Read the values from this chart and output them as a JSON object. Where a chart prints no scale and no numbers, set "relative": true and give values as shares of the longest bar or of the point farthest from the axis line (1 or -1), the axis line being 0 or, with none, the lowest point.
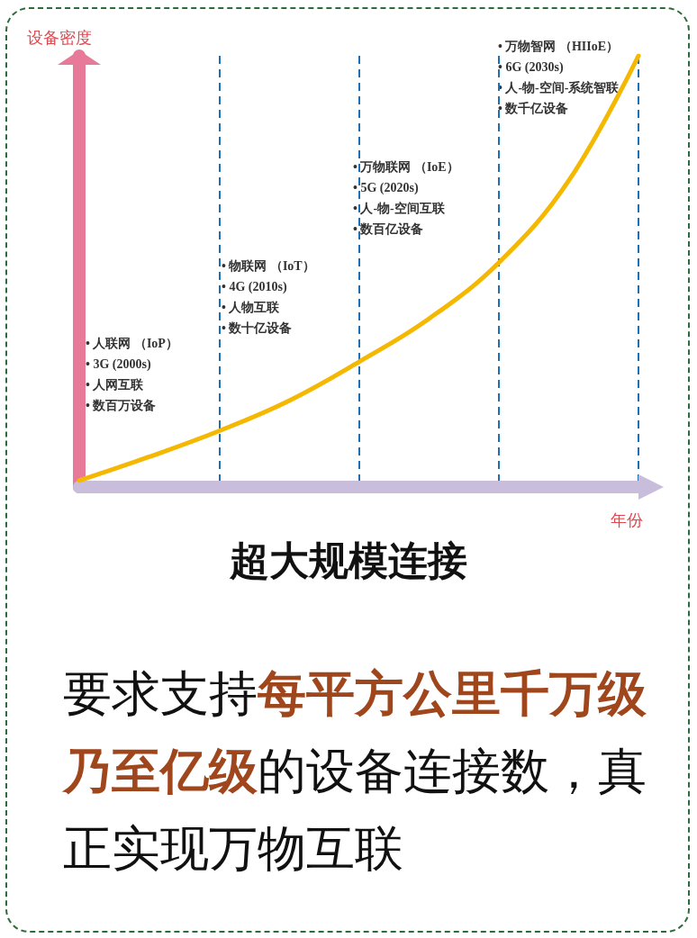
{
  "chart_data": {
    "type": "line",
    "title": "超大规模连接",
    "xlabel": "年份",
    "ylabel": "设备密度",
    "relative": true,
    "categories": [
      null,
      null,
      null,
      null,
      null,
      null,
      null,
      null,
      null
    ],
    "series": [
      {
        "color": "#f5b800",
        "values": [
          0.015,
          0.07,
          0.13,
          0.2,
          0.29,
          0.39,
          0.52,
          0.71,
          1.0
        ]
      }
    ],
    "annotations": [
      "• 人联网 （IoP）\n• 3G (2000s)\n• 人网互联\n• 数百万设备",
      "• 物联网 （IoT）\n• 4G (2010s)\n• 人物互联\n• 数十亿设备",
      "• 万物联网 （IoE）\n• 5G (2020s)\n• 人-物-空间互联\n• 数百亿设备",
      "• 万物智网 （HIIoE）\n• 6G (2030s)\n• 人-物-空间-系统智联\n• 数千亿设备",
      "要求支持",
      "每平方公里千万级乃至亿级",
      "的设备连接数，真正实现万物互联"
    ],
    "grid": "x",
    "marker": "none",
    "line_style": "solid"
  }
}
